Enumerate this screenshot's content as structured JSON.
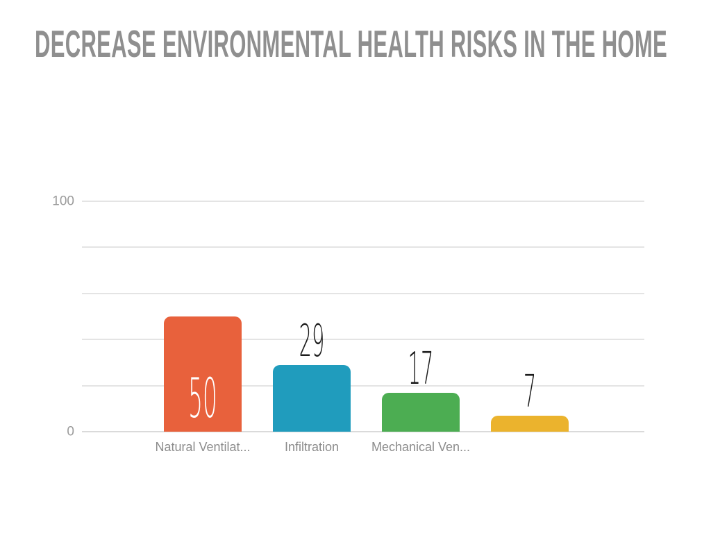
{
  "title": {
    "text": "DECREASE ENVIRONMENTAL HEALTH RISKS IN THE HOME",
    "color": "#8F8F8F"
  },
  "chart_data": {
    "type": "bar",
    "title": "DECREASE ENVIRONMENTAL HEALTH RISKS IN THE HOME",
    "categories": [
      "Natural Ventilat...",
      "Infiltration",
      "Mechanical Ven...",
      ""
    ],
    "values": [
      50,
      29,
      17,
      7
    ],
    "value_labels": [
      "50",
      "29",
      "17",
      "7"
    ],
    "value_label_placement": [
      "inside",
      "above",
      "above",
      "above"
    ],
    "value_label_colors": [
      "#FFFFFF",
      "#1C1C1C",
      "#1C1C1C",
      "#1C1C1C"
    ],
    "bar_colors": [
      "#E8613C",
      "#209CBD",
      "#4CAD52",
      "#EBB32D"
    ],
    "xlabel": "",
    "ylabel": "",
    "ylim": [
      0,
      100
    ],
    "axis": {
      "min": 0,
      "max": 100,
      "gridline_step": 20,
      "ticks": [
        {
          "value": 0,
          "label": "0"
        },
        {
          "value": 100,
          "label": "100"
        }
      ]
    },
    "grid": true,
    "legend": false,
    "style": {
      "background": "#FFFFFF",
      "gridline_color": "#E4E4E4",
      "baseline_color": "#DADADA",
      "tick_label_color": "#9B9B9B",
      "category_label_color": "#8C8C8C"
    }
  }
}
